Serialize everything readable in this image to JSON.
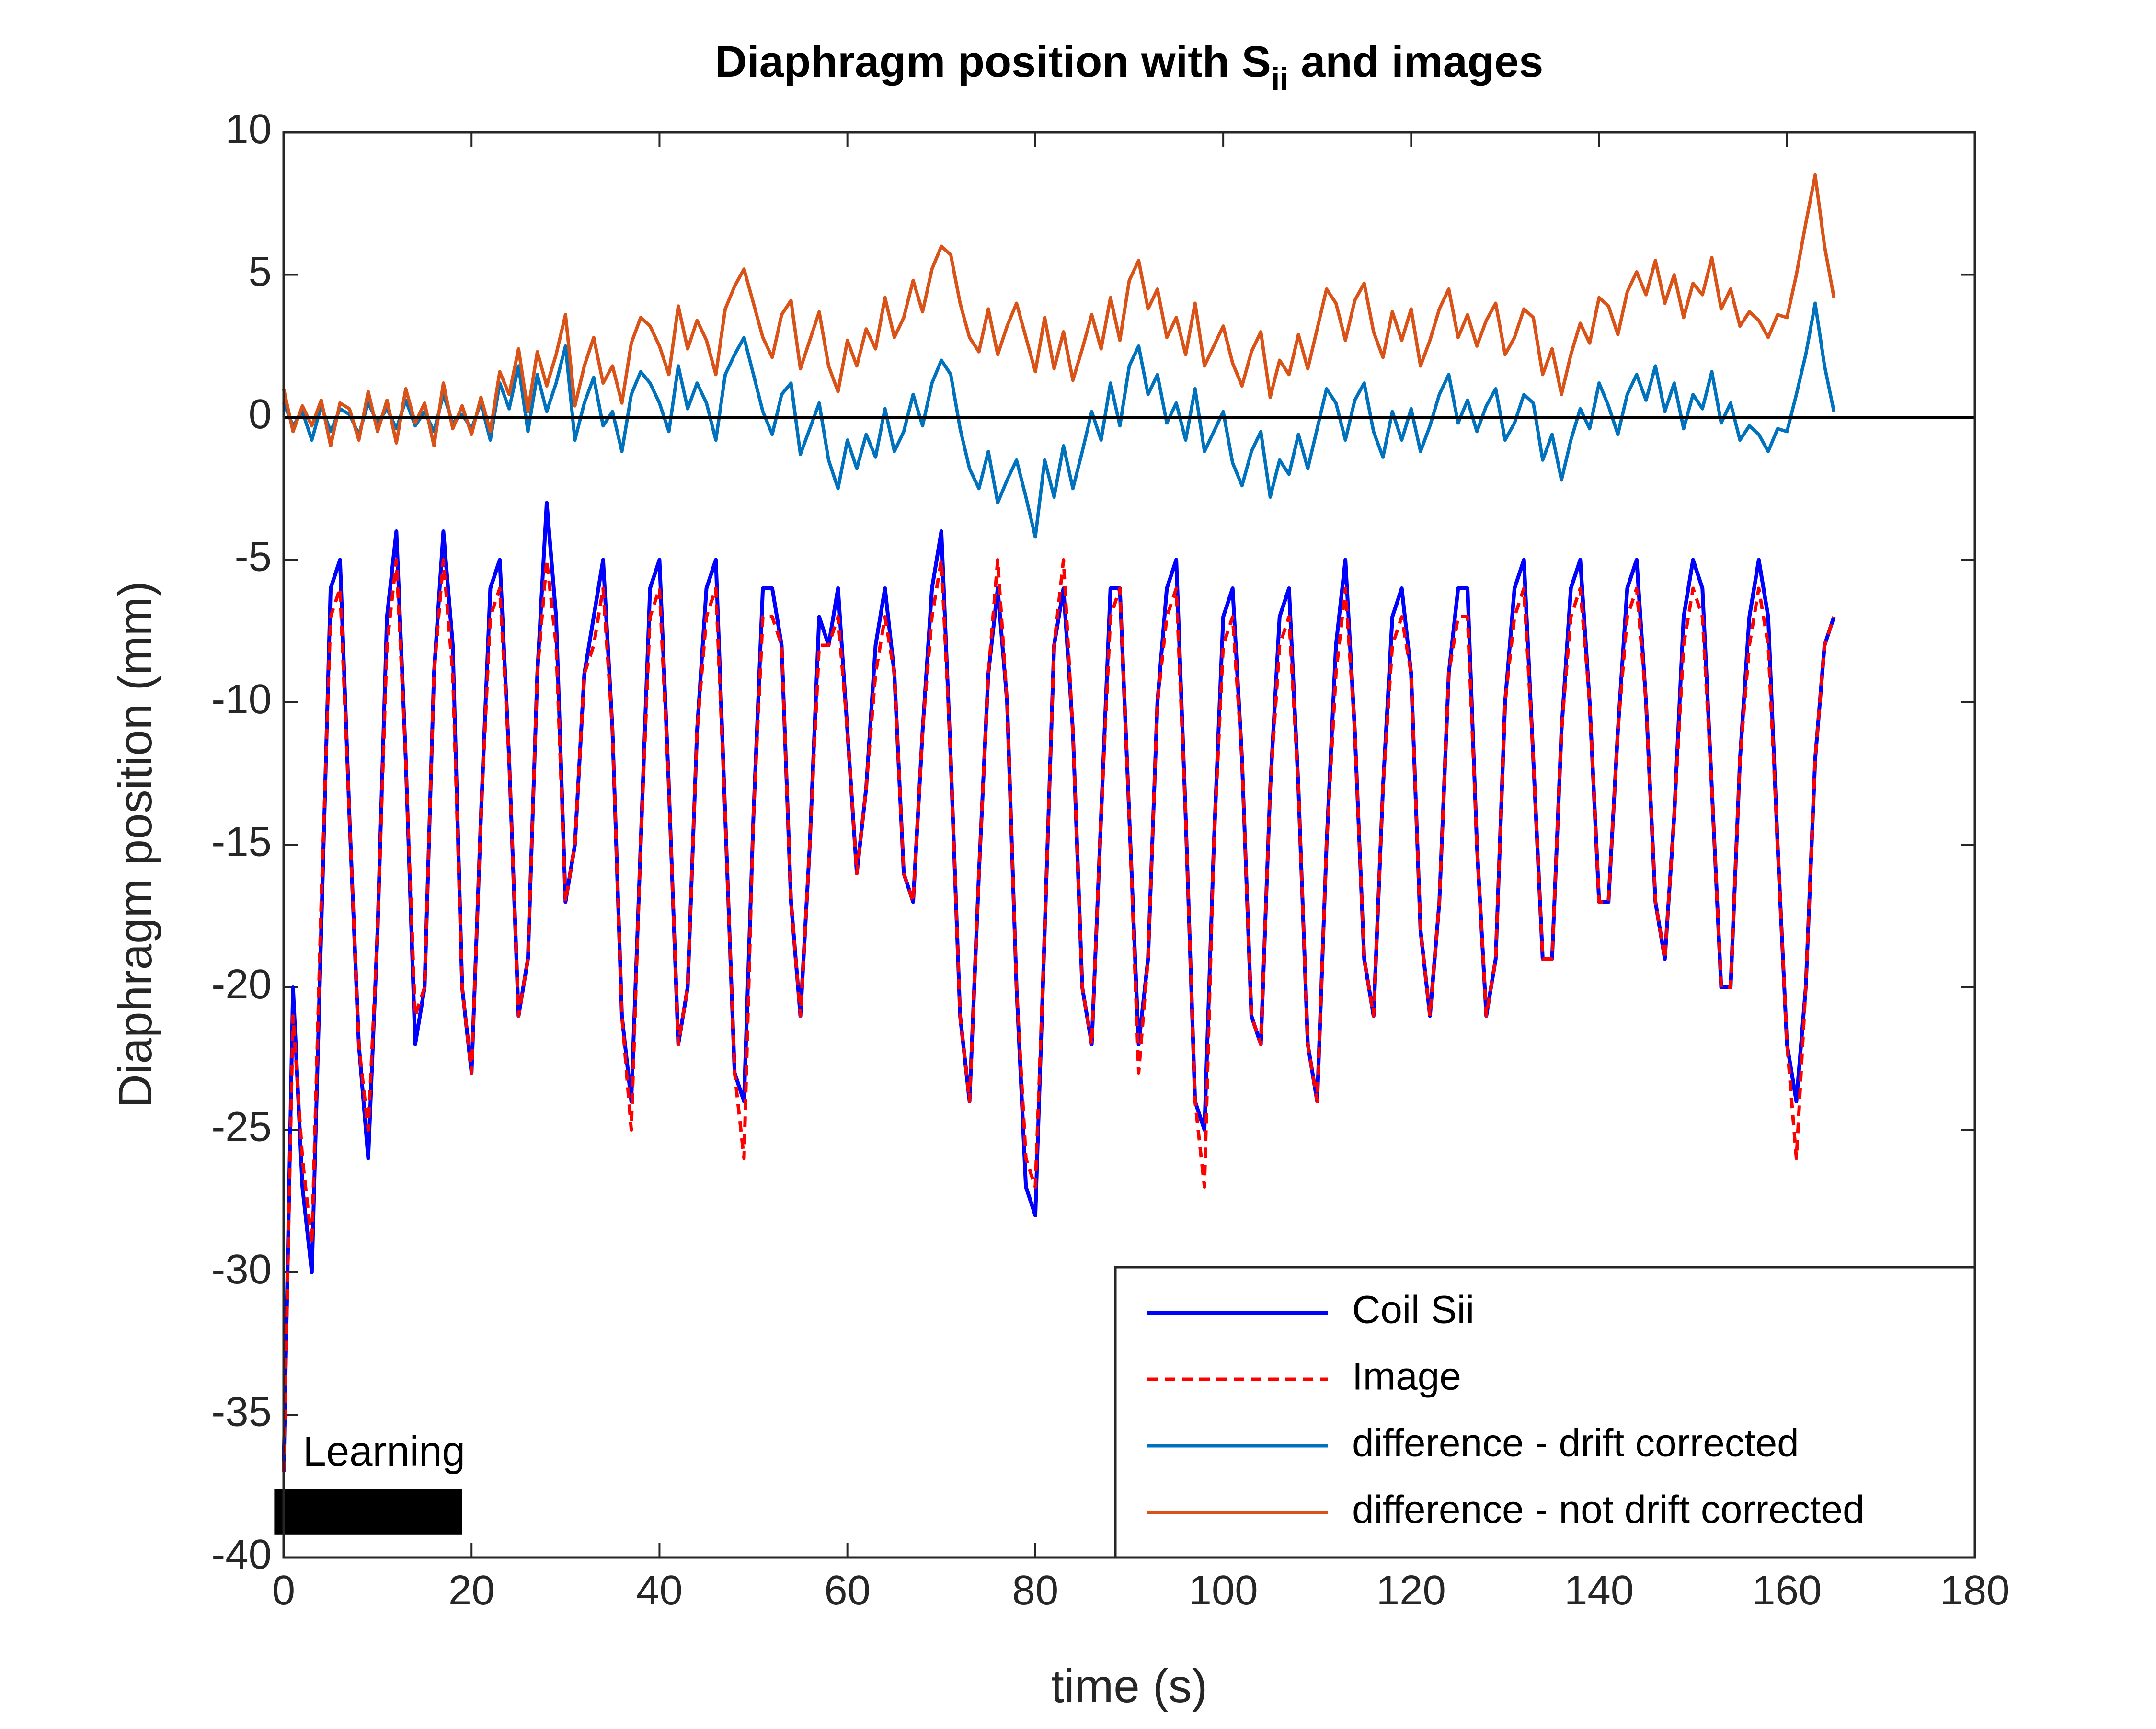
{
  "chart_data": {
    "type": "line",
    "title": {
      "text": "Diaphragm position with S",
      "subscript": "ii",
      "suffix": " and images"
    },
    "xlabel": "time (s)",
    "ylabel": "Diaphragm position (mm)",
    "xlim": [
      0,
      180
    ],
    "ylim": [
      -40,
      10
    ],
    "xticks": [
      0,
      20,
      40,
      60,
      80,
      100,
      120,
      140,
      160,
      180
    ],
    "yticks": [
      -40,
      -35,
      -30,
      -25,
      -20,
      -15,
      -10,
      -5,
      0,
      5,
      10
    ],
    "hline": {
      "y": 0,
      "color": "#000000"
    },
    "legend": "southeast",
    "learning_bar": {
      "label": "Learning",
      "x": [
        -1,
        19
      ],
      "y": -38.4,
      "color": "#000000"
    },
    "x": [
      0,
      1,
      2,
      3,
      4,
      5,
      6,
      7,
      8,
      9,
      10,
      11,
      12,
      13,
      14,
      15,
      16,
      17,
      18,
      19,
      20,
      21,
      22,
      23,
      24,
      25,
      26,
      27,
      28,
      29,
      30,
      31,
      32,
      33,
      34,
      35,
      36,
      37,
      38,
      39,
      40,
      41,
      42,
      43,
      44,
      45,
      46,
      47,
      48,
      49,
      50,
      51,
      52,
      53,
      54,
      55,
      56,
      57,
      58,
      59,
      60,
      61,
      62,
      63,
      64,
      65,
      66,
      67,
      68,
      69,
      70,
      71,
      72,
      73,
      74,
      75,
      76,
      77,
      78,
      79,
      80,
      81,
      82,
      83,
      84,
      85,
      86,
      87,
      88,
      89,
      90,
      91,
      92,
      93,
      94,
      95,
      96,
      97,
      98,
      99,
      100,
      101,
      102,
      103,
      104,
      105,
      106,
      107,
      108,
      109,
      110,
      111,
      112,
      113,
      114,
      115,
      116,
      117,
      118,
      119,
      120,
      121,
      122,
      123,
      124,
      125,
      126,
      127,
      128,
      129,
      130,
      131,
      132,
      133,
      134,
      135,
      136,
      137,
      138,
      139,
      140,
      141,
      142,
      143,
      144,
      145,
      146,
      147,
      148,
      149,
      150,
      151,
      152,
      153,
      154,
      155,
      156,
      157,
      158,
      159,
      160,
      161,
      162,
      163,
      164,
      165
    ],
    "series": [
      {
        "name": "Coil Sii",
        "color": "#0000ff",
        "dash": false,
        "values": [
          -37,
          -20,
          -27,
          -30,
          -18,
          -6,
          -5,
          -14,
          -22,
          -26,
          -18,
          -7,
          -4,
          -12,
          -22,
          -20,
          -9,
          -4,
          -8,
          -20,
          -23,
          -14,
          -6,
          -5,
          -12,
          -21,
          -19,
          -9,
          -3,
          -7,
          -17,
          -15,
          -9,
          -7,
          -5,
          -11,
          -21,
          -24,
          -15,
          -6,
          -5,
          -13,
          -22,
          -20,
          -11,
          -6,
          -5,
          -14,
          -23,
          -24,
          -14,
          -6,
          -6,
          -8,
          -17,
          -21,
          -15,
          -7,
          -8,
          -6,
          -11,
          -16,
          -13,
          -8,
          -6,
          -9,
          -16,
          -17,
          -11,
          -6,
          -4,
          -12,
          -21,
          -24,
          -16,
          -9,
          -6,
          -10,
          -20,
          -27,
          -28,
          -18,
          -8,
          -6,
          -11,
          -20,
          -22,
          -14,
          -6,
          -6,
          -14,
          -22,
          -19,
          -10,
          -6,
          -5,
          -14,
          -24,
          -25,
          -15,
          -7,
          -6,
          -12,
          -21,
          -22,
          -13,
          -7,
          -6,
          -13,
          -22,
          -24,
          -15,
          -8,
          -5,
          -11,
          -19,
          -21,
          -13,
          -7,
          -6,
          -9,
          -18,
          -21,
          -17,
          -9,
          -6,
          -6,
          -15,
          -21,
          -19,
          -10,
          -6,
          -5,
          -12,
          -19,
          -19,
          -11,
          -6,
          -5,
          -10,
          -17,
          -17,
          -11,
          -6,
          -5,
          -10,
          -17,
          -19,
          -14,
          -7,
          -5,
          -6,
          -13,
          -20,
          -20,
          -12,
          -7,
          -5,
          -7,
          -15,
          -22,
          -24,
          -20,
          -12,
          -8,
          -7
        ]
      },
      {
        "name": "Image",
        "color": "#ff0000",
        "dash": true,
        "values": [
          -37,
          -21,
          -26,
          -29,
          -17,
          -7,
          -6,
          -14,
          -22,
          -25,
          -18,
          -8,
          -5,
          -12,
          -21,
          -20,
          -9,
          -5,
          -9,
          -20,
          -23,
          -14,
          -7,
          -6,
          -12,
          -21,
          -19,
          -9,
          -5,
          -8,
          -17,
          -15,
          -9,
          -8,
          -6,
          -11,
          -21,
          -25,
          -15,
          -7,
          -6,
          -13,
          -22,
          -20,
          -11,
          -7,
          -6,
          -14,
          -23,
          -26,
          -14,
          -7,
          -7,
          -8,
          -17,
          -21,
          -15,
          -8,
          -8,
          -7,
          -11,
          -16,
          -13,
          -9,
          -7,
          -9,
          -16,
          -17,
          -11,
          -7,
          -5,
          -12,
          -21,
          -24,
          -16,
          -9,
          -5,
          -10,
          -20,
          -26,
          -27,
          -18,
          -8,
          -5,
          -11,
          -20,
          -22,
          -14,
          -7,
          -6,
          -14,
          -23,
          -19,
          -10,
          -7,
          -6,
          -14,
          -24,
          -27,
          -15,
          -8,
          -7,
          -12,
          -21,
          -22,
          -13,
          -8,
          -7,
          -13,
          -22,
          -24,
          -15,
          -9,
          -6,
          -11,
          -19,
          -21,
          -13,
          -8,
          -7,
          -9,
          -18,
          -21,
          -17,
          -9,
          -7,
          -7,
          -15,
          -21,
          -19,
          -10,
          -7,
          -6,
          -12,
          -19,
          -19,
          -11,
          -7,
          -6,
          -10,
          -17,
          -17,
          -11,
          -7,
          -6,
          -10,
          -17,
          -19,
          -14,
          -8,
          -6,
          -7,
          -13,
          -20,
          -20,
          -12,
          -8,
          -6,
          -8,
          -15,
          -22,
          -26,
          -20,
          -12,
          -8,
          -7
        ]
      },
      {
        "name": "difference - drift corrected",
        "color": "#0072bd",
        "dash": false,
        "values": [
          0.5,
          -0.3,
          0.2,
          -0.8,
          0.4,
          -0.5,
          0.3,
          0.1,
          -0.6,
          0.5,
          -0.2,
          0.3,
          -0.4,
          0.6,
          -0.3,
          0.2,
          -0.5,
          0.8,
          -0.2,
          0.1,
          -0.4,
          0.5,
          -0.8,
          1.2,
          0.3,
          1.8,
          -0.5,
          1.5,
          0.2,
          1.2,
          2.5,
          -0.8,
          0.5,
          1.4,
          -0.3,
          0.2,
          -1.2,
          0.8,
          1.6,
          1.2,
          0.5,
          -0.5,
          1.8,
          0.3,
          1.2,
          0.5,
          -0.8,
          1.5,
          2.2,
          2.8,
          1.5,
          0.2,
          -0.6,
          0.8,
          1.2,
          -1.3,
          -0.4,
          0.5,
          -1.5,
          -2.5,
          -0.8,
          -1.8,
          -0.6,
          -1.4,
          0.3,
          -1.2,
          -0.5,
          0.8,
          -0.3,
          1.2,
          2.0,
          1.5,
          -0.4,
          -1.8,
          -2.5,
          -1.2,
          -3.0,
          -2.2,
          -1.5,
          -2.8,
          -4.2,
          -1.5,
          -2.8,
          -1.0,
          -2.5,
          -1.2,
          0.2,
          -0.8,
          1.2,
          -0.3,
          1.8,
          2.5,
          0.8,
          1.5,
          -0.2,
          0.5,
          -0.8,
          1.0,
          -1.2,
          -0.5,
          0.2,
          -1.6,
          -2.4,
          -1.2,
          -0.5,
          -2.8,
          -1.5,
          -2.0,
          -0.6,
          -1.8,
          -0.4,
          1.0,
          0.5,
          -0.8,
          0.6,
          1.2,
          -0.5,
          -1.4,
          0.2,
          -0.8,
          0.3,
          -1.2,
          -0.3,
          0.8,
          1.5,
          -0.2,
          0.6,
          -0.5,
          0.4,
          1.0,
          -0.8,
          -0.2,
          0.8,
          0.5,
          -1.5,
          -0.6,
          -2.2,
          -0.8,
          0.3,
          -0.4,
          1.2,
          0.4,
          -0.6,
          0.8,
          1.5,
          0.6,
          1.8,
          0.2,
          1.2,
          -0.4,
          0.8,
          0.3,
          1.6,
          -0.2,
          0.5,
          -0.8,
          -0.3,
          -0.6,
          -1.2,
          -0.4,
          -0.5,
          0.8,
          2.2,
          4.0,
          1.8,
          0.2
        ]
      },
      {
        "name": "difference - not drift corrected",
        "color": "#d95319",
        "dash": false,
        "values": [
          1.0,
          -0.5,
          0.4,
          -0.3,
          0.6,
          -1.0,
          0.5,
          0.3,
          -0.8,
          0.9,
          -0.5,
          0.6,
          -0.9,
          1.0,
          -0.2,
          0.5,
          -1.0,
          1.2,
          -0.4,
          0.4,
          -0.6,
          0.7,
          -0.5,
          1.6,
          0.8,
          2.4,
          0.2,
          2.3,
          1.1,
          2.2,
          3.6,
          0.4,
          1.8,
          2.8,
          1.2,
          1.8,
          0.5,
          2.6,
          3.5,
          3.2,
          2.5,
          1.5,
          3.9,
          2.4,
          3.4,
          2.7,
          1.5,
          3.8,
          4.6,
          5.2,
          4.0,
          2.8,
          2.1,
          3.6,
          4.1,
          1.7,
          2.7,
          3.7,
          1.8,
          0.9,
          2.7,
          1.8,
          3.1,
          2.4,
          4.2,
          2.8,
          3.5,
          4.8,
          3.7,
          5.2,
          6.0,
          5.7,
          4.0,
          2.8,
          2.3,
          3.8,
          2.2,
          3.2,
          4.0,
          2.8,
          1.6,
          3.5,
          1.7,
          3.0,
          1.3,
          2.4,
          3.6,
          2.4,
          4.2,
          2.7,
          4.8,
          5.5,
          3.8,
          4.5,
          2.8,
          3.5,
          2.2,
          4.0,
          1.8,
          2.5,
          3.2,
          1.9,
          1.1,
          2.3,
          3.0,
          0.7,
          2.0,
          1.5,
          2.9,
          1.7,
          3.1,
          4.5,
          4.0,
          2.7,
          4.1,
          4.7,
          3.0,
          2.1,
          3.7,
          2.7,
          3.8,
          1.8,
          2.7,
          3.8,
          4.5,
          2.8,
          3.6,
          2.5,
          3.4,
          4.0,
          2.2,
          2.8,
          3.8,
          3.5,
          1.5,
          2.4,
          0.8,
          2.2,
          3.3,
          2.6,
          4.2,
          3.9,
          2.9,
          4.4,
          5.1,
          4.3,
          5.5,
          4.0,
          5.0,
          3.5,
          4.7,
          4.3,
          5.6,
          3.8,
          4.5,
          3.2,
          3.7,
          3.4,
          2.8,
          3.6,
          3.5,
          5.0,
          6.8,
          8.5,
          6.0,
          4.2
        ]
      }
    ]
  }
}
